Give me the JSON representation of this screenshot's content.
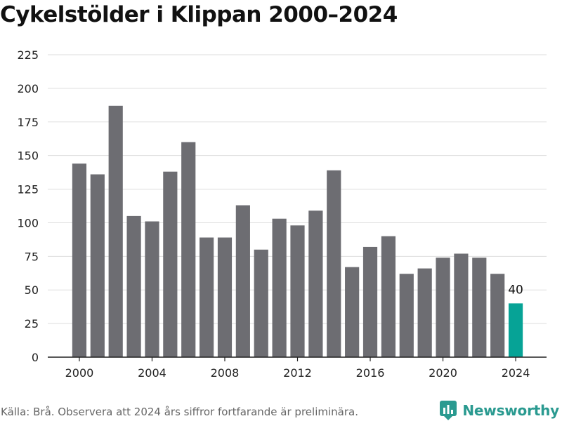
{
  "colors": {
    "bar": "#6d6d72",
    "highlight": "#06a396",
    "grid": "#dddddd",
    "axis": "#222222",
    "tick_text": "#222222",
    "brand": "#2a9a90"
  },
  "chart_data": {
    "type": "bar",
    "title": "Cykelstölder i Klippan 2000–2024",
    "xlabel": "",
    "ylabel": "",
    "categories": [
      "2000",
      "2001",
      "2002",
      "2003",
      "2004",
      "2005",
      "2006",
      "2007",
      "2008",
      "2009",
      "2010",
      "2011",
      "2012",
      "2013",
      "2014",
      "2015",
      "2016",
      "2017",
      "2018",
      "2019",
      "2020",
      "2021",
      "2022",
      "2023",
      "2024"
    ],
    "values": [
      144,
      136,
      187,
      105,
      101,
      138,
      160,
      89,
      89,
      113,
      80,
      103,
      98,
      109,
      139,
      67,
      82,
      90,
      62,
      66,
      74,
      77,
      74,
      62,
      40
    ],
    "ylim": [
      0,
      225
    ],
    "yticks": [
      "0",
      "25",
      "50",
      "75",
      "100",
      "125",
      "150",
      "175",
      "200",
      "225"
    ],
    "xticks": [
      "2000",
      "2004",
      "2008",
      "2012",
      "2016",
      "2020",
      "2024"
    ],
    "highlight_category": "2024",
    "annotations": [
      {
        "category": "2024",
        "text": "40"
      }
    ],
    "grid": true,
    "legend": "none"
  },
  "footer": {
    "source": "Källa: Brå. Observera att 2024 års siffror fortfarande är preliminära."
  },
  "brand": {
    "name": "Newsworthy",
    "icon": "bar-chart-logo-icon"
  }
}
